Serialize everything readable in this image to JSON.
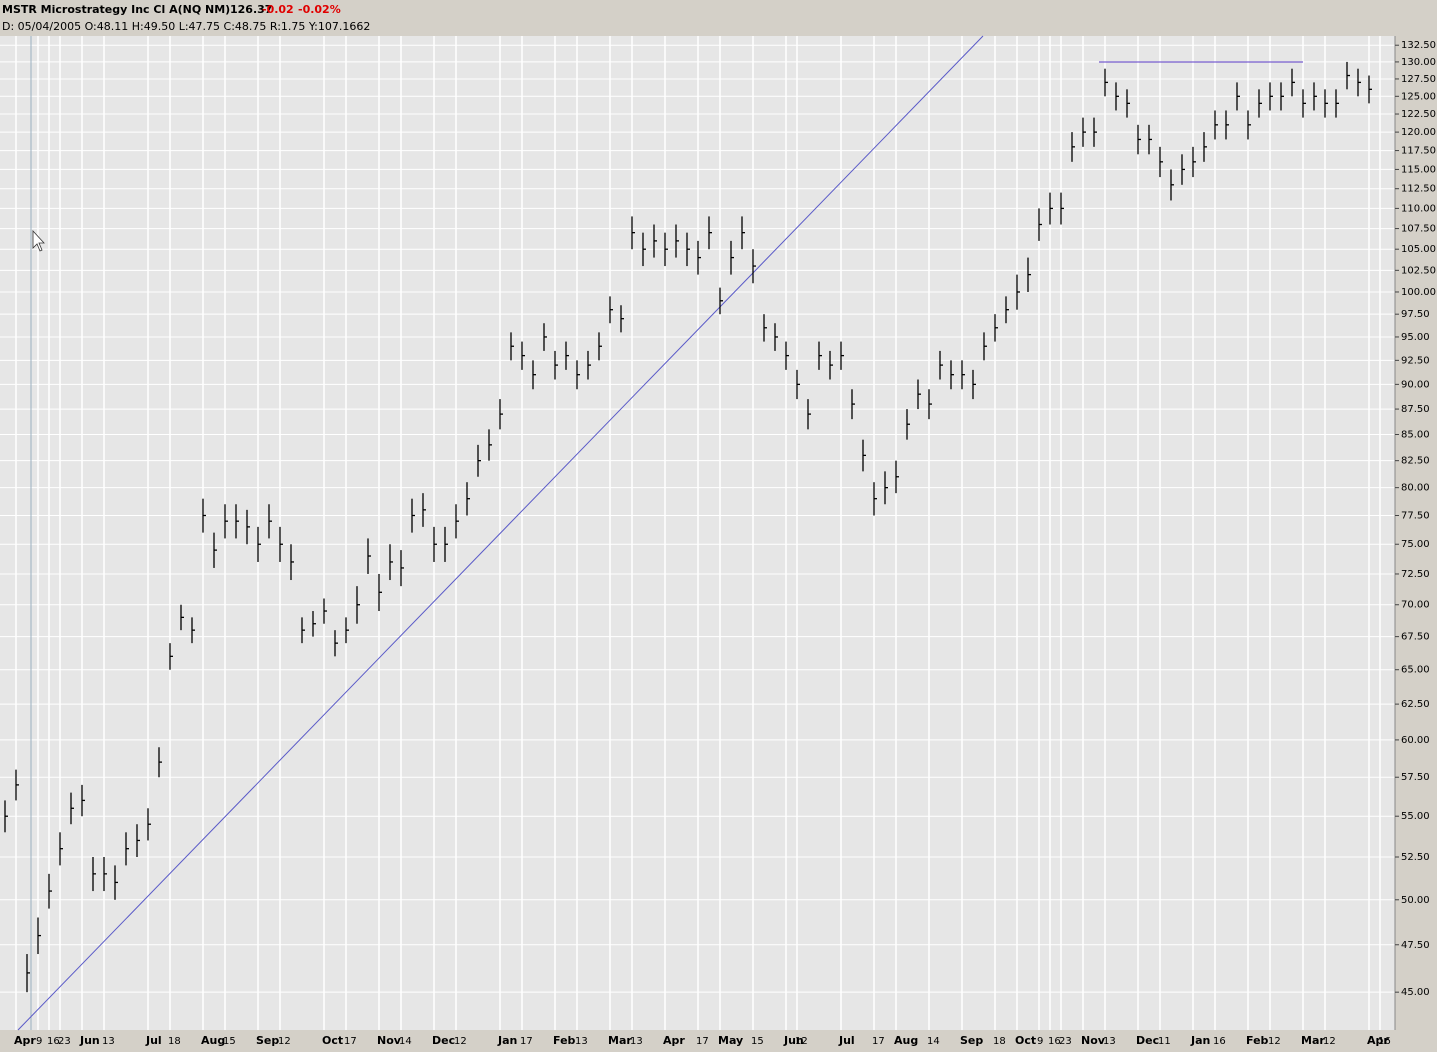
{
  "chart_data": {
    "type": "ohlc",
    "title": "MSTR Microstrategy Inc Cl A(NQ NM)",
    "last": "126.37",
    "change": "-0.02",
    "change_pct": "-0.02%",
    "info": "D: 05/04/2005 O:48.11 H:49.50 L:47.75 C:48.75 R:1.75 Y:107.1662",
    "categories": [
      null,
      "Apr",
      null,
      "9",
      "16",
      "23",
      null,
      "Jun",
      null,
      "13",
      null,
      null,
      null,
      "Jul",
      null,
      "18",
      null,
      null,
      "Aug",
      null,
      "15",
      null,
      null,
      "Sep",
      null,
      "12",
      null,
      null,
      null,
      "Oct",
      null,
      "17",
      null,
      null,
      "Nov",
      null,
      "14",
      null,
      null,
      "Dec",
      null,
      "12",
      null,
      null,
      null,
      "Jan",
      null,
      "17",
      null,
      null,
      "Feb",
      null,
      "13",
      null,
      null,
      "Mar",
      null,
      "13",
      null,
      null,
      "Apr",
      null,
      null,
      "17",
      null,
      "May",
      null,
      null,
      "15",
      null,
      null,
      "Jun",
      "12",
      null,
      null,
      null,
      "Jul",
      null,
      null,
      "17",
      null,
      "Aug",
      null,
      null,
      "14",
      null,
      null,
      "Sep",
      null,
      null,
      "18",
      null,
      "Oct",
      null,
      "9",
      "16",
      "23",
      null,
      "Nov",
      null,
      "13",
      null,
      null,
      "Dec",
      null,
      "11",
      null,
      null,
      "Jan",
      null,
      "16",
      null,
      null,
      "Feb",
      null,
      "12",
      null,
      null,
      "Mar",
      null,
      "12",
      null,
      null,
      null,
      "Apr",
      "16"
    ],
    "series": [
      {
        "name": "High",
        "values": [
          56,
          58,
          47,
          49,
          51.5,
          54,
          56.5,
          57,
          52.5,
          52.5,
          52,
          54,
          54.5,
          55.5,
          59.5,
          67,
          70,
          69,
          79,
          76,
          78.5,
          78.5,
          78,
          76.5,
          78.5,
          76.5,
          75,
          69,
          69.5,
          70.5,
          68,
          69,
          71.5,
          75.5,
          72.5,
          75,
          74.5,
          79,
          79.5,
          76.5,
          76.5,
          78.5,
          80.5,
          84,
          85.5,
          88.5,
          95.5,
          94.5,
          92.5,
          96.5,
          93.5,
          94.5,
          92.5,
          93.5,
          95.5,
          99.5,
          98.5,
          109,
          107,
          108,
          107,
          108,
          107,
          106,
          109,
          100.5,
          106,
          109,
          105,
          97.5,
          96.5,
          94.5,
          91.5,
          88.5,
          94.5,
          93.5,
          94.5,
          89.5,
          84.5,
          80.5,
          81.5,
          82.5,
          87.5,
          90.5,
          89.5,
          93.5,
          92.5,
          92.5,
          91.5,
          95.5,
          97.5,
          99.5,
          102,
          104,
          110,
          112,
          112,
          120,
          122,
          122,
          129,
          127,
          126,
          121,
          121,
          118,
          115,
          117,
          118,
          120,
          123,
          123,
          127,
          123,
          126,
          127,
          127,
          129,
          126,
          127,
          126,
          126,
          130,
          129,
          128,
          null
        ]
      },
      {
        "name": "Low",
        "values": [
          54,
          56,
          45,
          47,
          49.5,
          52,
          54.5,
          55,
          50.5,
          50.5,
          50,
          52,
          52.5,
          53.5,
          57.5,
          65,
          68,
          67,
          76,
          73,
          75.5,
          75.5,
          75,
          73.5,
          75.5,
          73.5,
          72,
          67,
          67.5,
          68.5,
          66,
          67,
          68.5,
          72.5,
          69.5,
          72,
          71.5,
          76,
          76.5,
          73.5,
          73.5,
          75.5,
          77.5,
          81,
          82.5,
          85.5,
          92.5,
          91.5,
          89.5,
          93.5,
          90.5,
          91.5,
          89.5,
          90.5,
          92.5,
          96.5,
          95.5,
          105,
          103,
          104,
          103,
          104,
          103,
          102,
          105,
          97.5,
          102,
          105,
          101,
          94.5,
          93.5,
          91.5,
          88.5,
          85.5,
          91.5,
          90.5,
          91.5,
          86.5,
          81.5,
          77.5,
          78.5,
          79.5,
          84.5,
          87.5,
          86.5,
          90.5,
          89.5,
          89.5,
          88.5,
          92.5,
          94.5,
          96.5,
          98,
          100,
          106,
          108,
          108,
          116,
          118,
          118,
          125,
          123,
          122,
          117,
          117,
          114,
          111,
          113,
          114,
          116,
          119,
          119,
          123,
          119,
          122,
          123,
          123,
          125,
          122,
          123,
          122,
          122,
          126,
          125,
          124,
          null
        ]
      },
      {
        "name": "Close",
        "values": [
          55,
          57,
          46,
          48,
          50.5,
          53,
          55.5,
          56,
          51.5,
          51.5,
          51,
          53,
          53.5,
          54.5,
          58.5,
          66,
          69,
          68,
          77.5,
          74.5,
          77,
          77,
          76.5,
          75,
          77,
          75,
          73.5,
          68,
          68.5,
          69.5,
          67,
          68,
          70,
          74,
          71,
          73.5,
          73,
          77.5,
          78,
          75,
          75,
          77,
          79,
          82.5,
          84,
          87,
          94,
          93,
          91,
          95,
          92,
          93,
          91,
          92,
          94,
          98,
          97,
          107,
          105,
          106,
          105,
          106,
          105,
          104,
          107,
          99,
          104,
          107,
          103,
          96,
          95,
          93,
          90,
          87,
          93,
          92,
          93,
          88,
          83,
          79,
          80,
          81,
          86,
          89,
          88,
          92,
          91,
          91,
          90,
          94,
          96,
          98,
          100,
          102,
          108,
          110,
          110,
          118,
          120,
          120,
          127,
          125,
          124,
          119,
          119,
          116,
          113,
          115,
          116,
          118,
          121,
          121,
          125,
          121,
          124,
          125,
          125,
          127,
          124,
          125,
          124,
          124,
          128,
          127,
          126,
          null
        ]
      }
    ],
    "color": "#000000",
    "log_scale": true,
    "grid": true,
    "ylim": [
      43.1,
      133.9
    ],
    "yticks": [
      {
        "value": 45,
        "label": "45.00"
      },
      {
        "value": 47.5,
        "label": "47.50"
      },
      {
        "value": 50,
        "label": "50.00"
      },
      {
        "value": 52.5,
        "label": "52.50"
      },
      {
        "value": 55,
        "label": "55.00"
      },
      {
        "value": 57.5,
        "label": "57.50"
      },
      {
        "value": 60,
        "label": "60.00"
      },
      {
        "value": 62.5,
        "label": "62.50"
      },
      {
        "value": 65,
        "label": "65.00"
      },
      {
        "value": 67.5,
        "label": "67.50"
      },
      {
        "value": 70,
        "label": "70.00"
      },
      {
        "value": 72.5,
        "label": "72.50"
      },
      {
        "value": 75,
        "label": "75.00"
      },
      {
        "value": 77.5,
        "label": "77.50"
      },
      {
        "value": 80,
        "label": "80.00"
      },
      {
        "value": 82.5,
        "label": "82.50"
      },
      {
        "value": 85,
        "label": "85.00"
      },
      {
        "value": 87.5,
        "label": "87.50"
      },
      {
        "value": 90,
        "label": "90.00"
      },
      {
        "value": 92.5,
        "label": "92.50"
      },
      {
        "value": 95,
        "label": "95.00"
      },
      {
        "value": 97.5,
        "label": "97.50"
      },
      {
        "value": 100,
        "label": "100.00"
      },
      {
        "value": 102.5,
        "label": "102.50"
      },
      {
        "value": 105,
        "label": "105.00"
      },
      {
        "value": 107.5,
        "label": "107.50"
      },
      {
        "value": 110,
        "label": "110.00"
      },
      {
        "value": 112.5,
        "label": "112.50"
      },
      {
        "value": 115,
        "label": "115.00"
      },
      {
        "value": 117.5,
        "label": "117.50"
      },
      {
        "value": 120,
        "label": "120.00"
      },
      {
        "value": 122.5,
        "label": "122.50"
      },
      {
        "value": 125,
        "label": "125.00"
      },
      {
        "value": 127.5,
        "label": "127.50"
      },
      {
        "value": 130,
        "label": "130.00"
      },
      {
        "value": 132.5,
        "label": "132.50"
      }
    ]
  }
}
